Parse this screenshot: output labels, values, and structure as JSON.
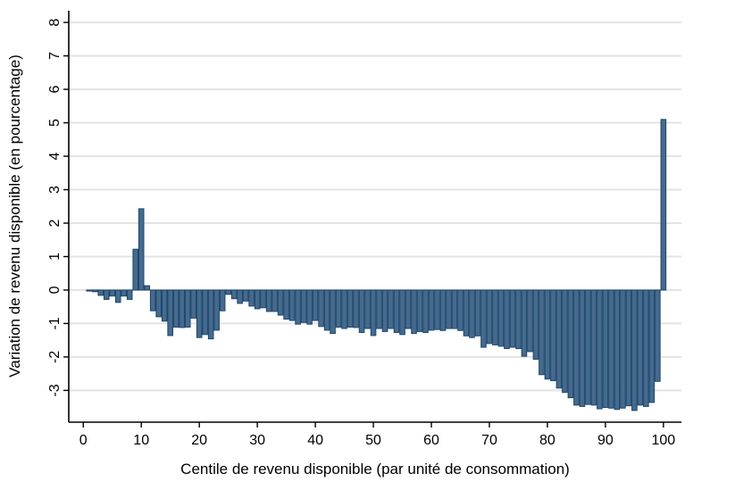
{
  "chart_data": {
    "type": "bar",
    "title": "",
    "xlabel": "Centile de revenu disponible (par unité de consommation)",
    "ylabel": "Variation de revenu disponible (en pourcentage)",
    "x_first": 1,
    "x_step": 1,
    "values": [
      -0.03,
      -0.05,
      -0.16,
      -0.28,
      -0.18,
      -0.37,
      -0.18,
      -0.28,
      1.22,
      2.43,
      0.13,
      -0.62,
      -0.8,
      -0.93,
      -1.36,
      -1.11,
      -1.12,
      -1.11,
      -0.84,
      -1.42,
      -1.33,
      -1.46,
      -1.2,
      -0.62,
      -0.13,
      -0.26,
      -0.4,
      -0.33,
      -0.48,
      -0.56,
      -0.53,
      -0.64,
      -0.64,
      -0.75,
      -0.87,
      -0.91,
      -1.02,
      -0.97,
      -1.02,
      -0.91,
      -1.09,
      -1.2,
      -1.3,
      -1.11,
      -1.15,
      -1.11,
      -1.12,
      -1.27,
      -1.15,
      -1.36,
      -1.15,
      -1.24,
      -1.15,
      -1.27,
      -1.33,
      -1.15,
      -1.3,
      -1.24,
      -1.27,
      -1.2,
      -1.18,
      -1.21,
      -1.15,
      -1.15,
      -1.21,
      -1.37,
      -1.42,
      -1.37,
      -1.71,
      -1.6,
      -1.64,
      -1.68,
      -1.75,
      -1.71,
      -1.75,
      -1.98,
      -1.84,
      -2.07,
      -2.53,
      -2.66,
      -2.71,
      -2.93,
      -3.06,
      -3.22,
      -3.44,
      -3.48,
      -3.42,
      -3.44,
      -3.55,
      -3.51,
      -3.53,
      -3.57,
      -3.53,
      -3.46,
      -3.6,
      -3.44,
      -3.48,
      -3.36,
      -2.73,
      5.1
    ],
    "x_ticks": [
      0,
      10,
      20,
      30,
      40,
      50,
      60,
      70,
      80,
      90,
      100
    ],
    "y_ticks": [
      -3,
      -2,
      -1,
      0,
      1,
      2,
      3,
      4,
      5,
      6,
      7,
      8
    ],
    "xlim": [
      -2.5,
      103.1
    ],
    "ylim": [
      -3.95,
      8.35
    ],
    "grid": "horizontal",
    "legend": "none",
    "colors": {
      "bar_fill": "#476a8c",
      "bar_outline": "#1a476f",
      "grid": "#e3e3e3",
      "axis": "#000000",
      "background": "#ffffff"
    }
  }
}
